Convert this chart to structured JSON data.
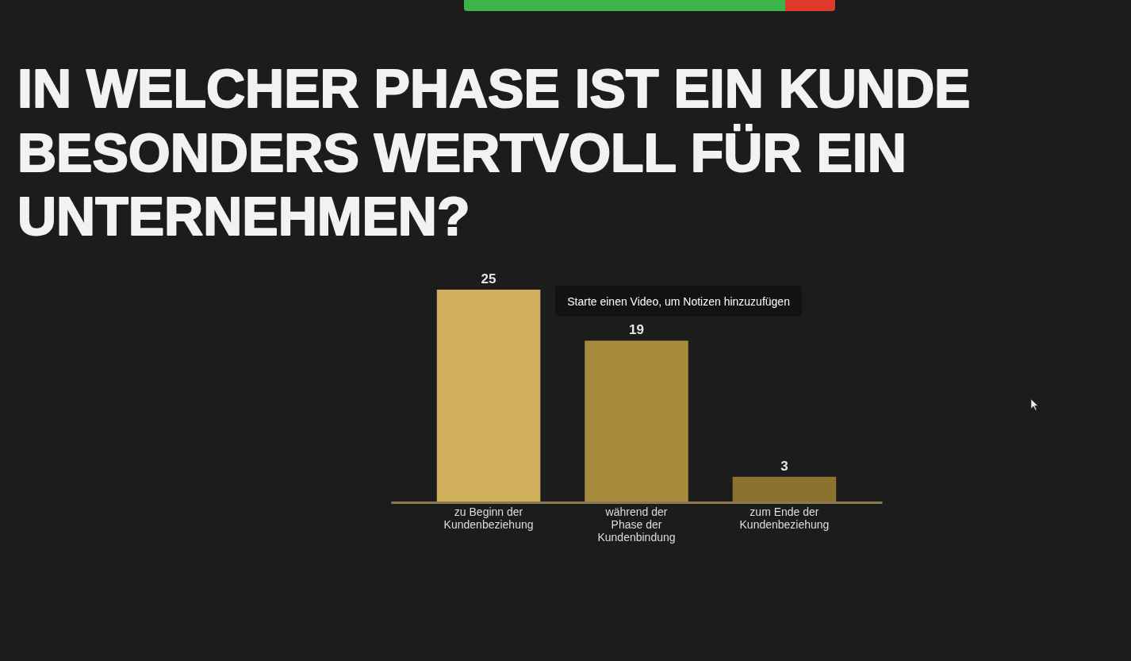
{
  "chart_data": {
    "type": "bar",
    "title": "IN WELCHER PHASE IST EIN KUNDE BESONDERS WERTVOLL FÜR EIN UNTERNEHMEN?",
    "categories": [
      "zu Beginn der Kundenbeziehung",
      "während der Phase der Kundenbindung",
      "zum Ende der Kundenbeziehung"
    ],
    "values": [
      25,
      19,
      3
    ],
    "colors": [
      "#d1ae5b",
      "#a98b3d",
      "#8c7130"
    ],
    "data_labels": true,
    "annotations": [
      "Starte einen Video, um Notizen hinzuzufügen"
    ]
  }
}
